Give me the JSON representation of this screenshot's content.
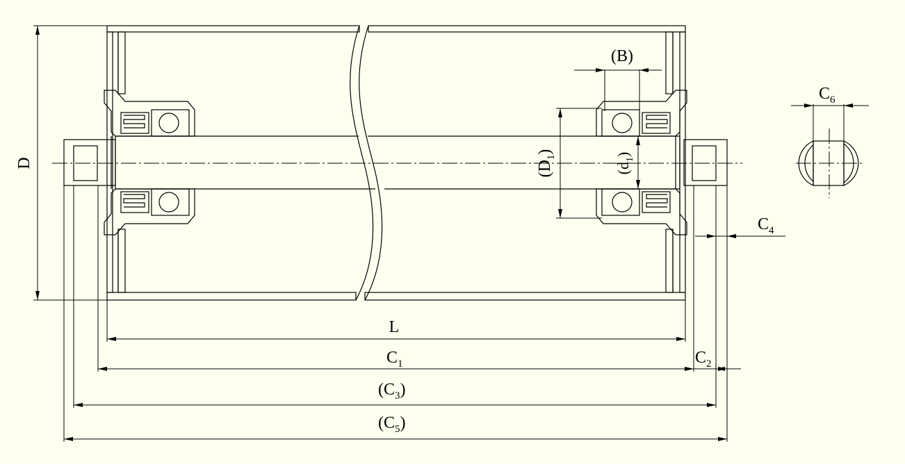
{
  "colors": {
    "background": "#fffff0",
    "line": "#000000"
  },
  "labels": {
    "D": "D",
    "L": "L",
    "B": "(B)",
    "D1": {
      "text": "(D",
      "sub": "1",
      "close": ")"
    },
    "d1": {
      "text": "(d",
      "sub": "1",
      "close": ")"
    },
    "C1": {
      "text": "C",
      "sub": "1"
    },
    "C2": {
      "text": "C",
      "sub": "2"
    },
    "C3": {
      "text": "(C",
      "sub": "3",
      "close": ")"
    },
    "C4": {
      "text": "C",
      "sub": "4"
    },
    "C5": {
      "text": "(C",
      "sub": "5",
      "close": ")"
    },
    "C6": {
      "text": "C",
      "sub": "6"
    }
  }
}
